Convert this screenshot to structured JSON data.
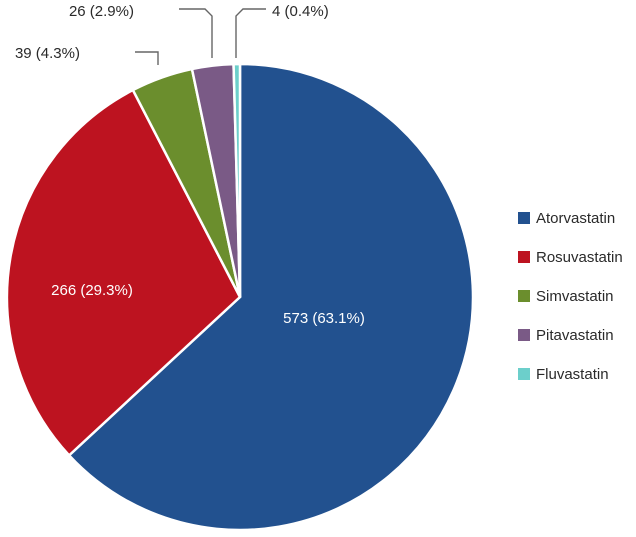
{
  "chart_data": {
    "type": "pie",
    "title": "",
    "start_angle_deg": 0,
    "direction": "clockwise",
    "legend_position": "right",
    "slices": [
      {
        "name": "Atorvastatin",
        "value": 573,
        "percent": 63.1,
        "label": "573 (63.1%)",
        "color": "#22518F",
        "label_position": "inside"
      },
      {
        "name": "Rosuvastatin",
        "value": 266,
        "percent": 29.3,
        "label": "266 (29.3%)",
        "color": "#BD1320",
        "label_position": "inside"
      },
      {
        "name": "Simvastatin",
        "value": 39,
        "percent": 4.3,
        "label": "39 (4.3%)",
        "color": "#6B8E2D",
        "label_position": "outside"
      },
      {
        "name": "Pitavastatin",
        "value": 26,
        "percent": 2.9,
        "label": "26 (2.9%)",
        "color": "#7A5A86",
        "label_position": "outside"
      },
      {
        "name": "Fluvastatin",
        "value": 4,
        "percent": 0.4,
        "label": "4 (0.4%)",
        "color": "#6CCFCB",
        "label_position": "outside"
      }
    ]
  }
}
